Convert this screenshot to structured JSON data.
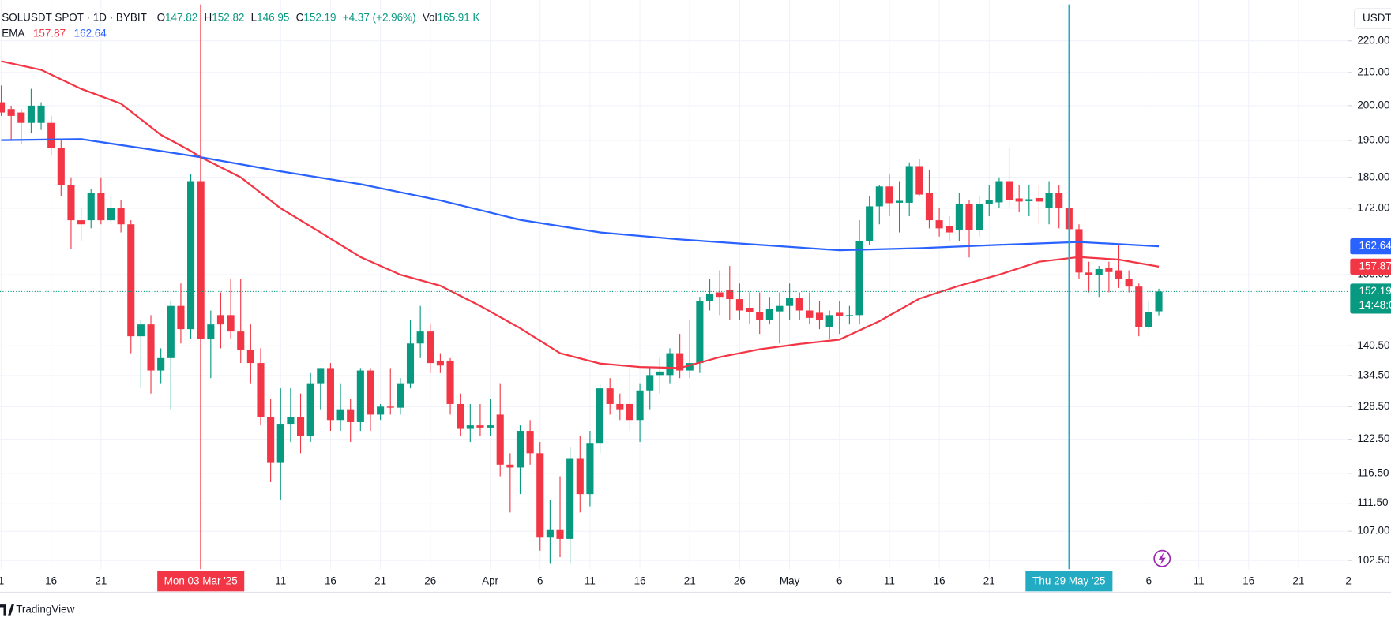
{
  "chart_data": {
    "type": "candlestick",
    "title": "SOLUSDT SPOT · 1D · BYBIT",
    "ohlc_labels": [
      "O",
      "H",
      "L",
      "C"
    ],
    "change": "+4.37 (+2.96%)",
    "volume_label": "Vol",
    "volume": "165.91 K",
    "indicator": "EMA",
    "currency": "USDT",
    "countdown": "14:48:0",
    "brand": "TradingView",
    "up_color": "#089981",
    "down_color": "#f23645",
    "open": [
      201,
      199,
      198,
      195,
      195,
      195,
      188,
      178,
      169,
      169,
      176,
      169,
      172,
      168,
      142.5,
      145,
      135.5,
      138,
      149,
      144,
      179,
      142,
      147,
      147,
      143.5,
      139.6,
      137,
      126.5,
      118.3,
      125.3,
      126.6,
      123,
      133,
      136,
      126,
      128,
      125.6,
      135.5,
      127,
      128.5,
      128.3,
      133,
      141,
      143.5,
      137.5,
      137.5,
      129,
      124.5,
      125,
      124.6,
      127,
      118,
      117.5,
      124,
      120,
      106,
      107.3,
      105.8,
      119,
      113,
      121.7,
      132,
      129,
      129,
      126,
      131.6,
      134.6,
      134.6,
      139,
      135.5,
      137,
      150,
      152,
      152.5,
      150.5,
      148.6,
      147.7,
      146,
      147.8,
      149,
      150.7,
      148,
      147.5,
      144.5,
      147.5,
      146.8,
      147,
      164,
      172.5,
      177.6,
      173.4,
      173.4,
      183,
      176,
      169,
      167.5,
      166.5,
      173,
      166.5,
      173,
      173.5,
      179,
      174.5,
      173.8,
      174.6,
      172,
      176,
      172,
      166.8,
      156.5,
      156,
      157.6,
      157,
      155,
      153.3,
      144.5,
      147.82
    ],
    "high": [
      206,
      200,
      199,
      205,
      201,
      197,
      190,
      180,
      172,
      177,
      180,
      175,
      174,
      169,
      146,
      147,
      140,
      150,
      154,
      181,
      181,
      148,
      152,
      155,
      155,
      145,
      140,
      130,
      132,
      132,
      131,
      135,
      136,
      137,
      133,
      130,
      136,
      136,
      129,
      136,
      134,
      146,
      149,
      145,
      139,
      138,
      131,
      129,
      129,
      130,
      133,
      120,
      125,
      126,
      122,
      112,
      116,
      121,
      123,
      124,
      133,
      134,
      131,
      136,
      133,
      136,
      138,
      140,
      143,
      146,
      151,
      155,
      157,
      158,
      154,
      152,
      152,
      151,
      152,
      154,
      152,
      152,
      150,
      148,
      150,
      149,
      169,
      175,
      178,
      181,
      179,
      184,
      185,
      182,
      172,
      170,
      176,
      174,
      175,
      178,
      180,
      188,
      178,
      178,
      178,
      179,
      178,
      173,
      168,
      159,
      158,
      159,
      163,
      157,
      154,
      150,
      152.82
    ],
    "low": [
      197,
      190,
      189,
      192,
      193,
      186,
      175,
      162,
      164,
      167,
      168,
      168,
      166,
      139,
      132,
      131,
      133,
      128,
      141,
      142,
      140,
      134,
      140,
      142,
      137,
      133,
      125,
      115,
      112,
      122,
      120,
      122,
      128,
      124,
      124,
      122,
      124,
      124,
      126,
      127,
      127,
      132,
      138,
      135,
      135,
      127,
      123,
      122,
      123,
      123,
      116,
      110,
      113,
      118,
      104,
      102,
      103,
      102,
      110,
      111,
      120,
      127,
      126,
      124,
      122,
      128,
      131,
      133,
      134,
      134,
      135,
      148,
      147,
      146,
      146,
      145,
      143,
      145,
      141,
      146,
      146,
      145,
      144,
      142,
      143,
      145,
      145,
      163,
      168,
      170,
      166,
      170,
      175,
      167,
      165,
      164,
      164,
      160,
      165,
      170,
      172,
      172,
      171,
      170,
      168,
      168,
      167,
      165,
      155,
      152,
      151,
      152,
      153,
      152,
      142.5,
      144,
      146.95
    ],
    "close": [
      198,
      197,
      195,
      200,
      200,
      188,
      178,
      169,
      168,
      176,
      169,
      172,
      168,
      142.5,
      145,
      135.5,
      138,
      149,
      144,
      179,
      142,
      145,
      145,
      143.5,
      139.6,
      137,
      126.5,
      118.3,
      125.3,
      126.6,
      123,
      133,
      136,
      126,
      128,
      125.6,
      135.5,
      127,
      128.5,
      128.3,
      133,
      141,
      143.5,
      137,
      136.5,
      129,
      124.5,
      125,
      124.6,
      125,
      118,
      117.5,
      124,
      120,
      106,
      107.3,
      105.8,
      119,
      113,
      121.7,
      132,
      129,
      128,
      126,
      131.6,
      134.6,
      135.3,
      139,
      135.5,
      137,
      150,
      151.6,
      151,
      150.5,
      148,
      147.7,
      146,
      148.3,
      149,
      150.7,
      148,
      146.4,
      146,
      147,
      146.8,
      147,
      164,
      172.5,
      177.6,
      173.3,
      173.9,
      183,
      175.5,
      169,
      167,
      166,
      173,
      166.5,
      173,
      174,
      179,
      174,
      173.7,
      174.3,
      173.7,
      176,
      172,
      166.8,
      156.5,
      156,
      157.3,
      156.6,
      155,
      153.3,
      144.5,
      147.7,
      152.19
    ],
    "series": [
      {
        "color": "#f23645",
        "x": [
          0,
          4,
          8,
          12,
          16,
          19,
          20,
          24,
          28,
          32,
          36,
          40,
          44,
          48,
          52,
          56,
          60,
          64,
          68,
          72,
          76,
          80,
          84,
          88,
          92,
          96,
          100,
          104,
          108,
          112,
          116
        ],
        "values": [
          213.5,
          210.8,
          205,
          200.6,
          191.6,
          187.1,
          185.4,
          180,
          172,
          166,
          160.1,
          156,
          153.5,
          149,
          144.2,
          139,
          136.9,
          136.2,
          136,
          138.2,
          139.8,
          140.9,
          141.8,
          145.7,
          150.6,
          153.5,
          156,
          159,
          160.1,
          159.5,
          157.87
        ]
      },
      {
        "color": "#2962ff",
        "x": [
          0,
          8,
          16,
          20,
          28,
          36,
          44,
          52,
          60,
          68,
          76,
          84,
          92,
          100,
          108,
          116
        ],
        "values": [
          190.1,
          190.4,
          187.1,
          185.4,
          181.6,
          178.2,
          174,
          169.1,
          166,
          164.3,
          163,
          161.7,
          162.2,
          163,
          163.7,
          162.64
        ]
      }
    ],
    "markers": [
      {
        "x": 20,
        "label": "Mon 03 Mar '25",
        "color": "#f23645"
      },
      {
        "x": 107,
        "label": "Thu 29 May '25",
        "color": "#22abc3"
      }
    ],
    "xlim": [
      -0.12,
      135
    ],
    "xticks": [
      {
        "value": 0,
        "label": "1"
      },
      {
        "value": 5,
        "label": "16"
      },
      {
        "value": 10,
        "label": "21"
      },
      {
        "value": 28,
        "label": "11"
      },
      {
        "value": 33,
        "label": "16"
      },
      {
        "value": 38,
        "label": "21"
      },
      {
        "value": 43,
        "label": "26"
      },
      {
        "value": 49,
        "label": "Apr"
      },
      {
        "value": 54,
        "label": "6"
      },
      {
        "value": 59,
        "label": "11"
      },
      {
        "value": 64,
        "label": "16"
      },
      {
        "value": 69,
        "label": "21"
      },
      {
        "value": 74,
        "label": "26"
      },
      {
        "value": 79,
        "label": "May"
      },
      {
        "value": 84,
        "label": "6"
      },
      {
        "value": 89,
        "label": "11"
      },
      {
        "value": 94,
        "label": "16"
      },
      {
        "value": 99,
        "label": "21"
      },
      {
        "value": 115,
        "label": "6"
      },
      {
        "value": 120,
        "label": "11"
      },
      {
        "value": 125,
        "label": "16"
      },
      {
        "value": 130,
        "label": "21"
      },
      {
        "value": 135,
        "label": "2"
      }
    ],
    "ylim": [
      101.2,
      233.6
    ],
    "log": true,
    "yticks": [
      {
        "value": 220,
        "label": "220.00"
      },
      {
        "value": 210,
        "label": "210.00"
      },
      {
        "value": 200,
        "label": "200.00"
      },
      {
        "value": 190,
        "label": "190.00"
      },
      {
        "value": 180,
        "label": "180.00"
      },
      {
        "value": 172,
        "label": "172.00"
      },
      {
        "value": 156,
        "label": "156.00"
      },
      {
        "value": 140.5,
        "label": "140.50"
      },
      {
        "value": 134.5,
        "label": "134.50"
      },
      {
        "value": 128.5,
        "label": "128.50"
      },
      {
        "value": 122.5,
        "label": "122.50"
      },
      {
        "value": 116.5,
        "label": "116.50"
      },
      {
        "value": 111.5,
        "label": "111.50"
      },
      {
        "value": 107,
        "label": "107.00"
      },
      {
        "value": 102.5,
        "label": "102.50"
      }
    ],
    "grid": true
  }
}
